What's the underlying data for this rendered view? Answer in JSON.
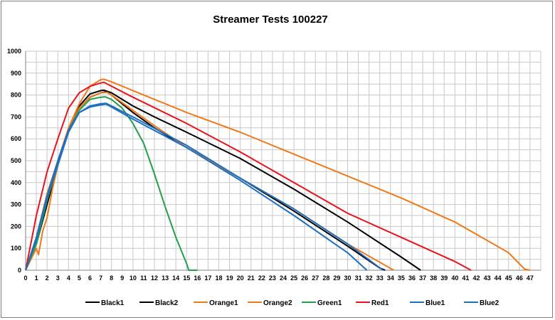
{
  "chart_data": {
    "type": "line",
    "title": "Streamer Tests 100227",
    "xlabel": "",
    "ylabel": "",
    "xlim": [
      0,
      48
    ],
    "ylim": [
      0,
      1000
    ],
    "x_ticks": [
      "0",
      "1",
      "2",
      "3",
      "4",
      "5",
      "6",
      "7",
      "8",
      "9",
      "10",
      "11",
      "12",
      "13",
      "14",
      "15",
      "16",
      "17",
      "18",
      "19",
      "20",
      "21",
      "22",
      "23",
      "24",
      "25",
      "26",
      "27",
      "28",
      "29",
      "30",
      "31",
      "32",
      "33",
      "34",
      "35",
      "36",
      "37",
      "38",
      "39",
      "40",
      "41",
      "42",
      "43",
      "44",
      "45",
      "46",
      "47"
    ],
    "y_ticks": [
      "0",
      "100",
      "200",
      "300",
      "400",
      "500",
      "600",
      "700",
      "800",
      "900",
      "1000"
    ],
    "grid": true,
    "legend_position": "bottom",
    "series": [
      {
        "name": "Black1",
        "color": "#000000",
        "x": [
          0,
          1,
          2,
          3,
          4,
          5,
          6,
          7,
          7.5,
          8,
          10,
          12,
          15,
          20,
          25,
          30,
          33,
          33.5
        ],
        "y": [
          0,
          120,
          300,
          480,
          640,
          740,
          790,
          810,
          815,
          800,
          720,
          650,
          560,
          420,
          270,
          110,
          10,
          0
        ]
      },
      {
        "name": "Black2",
        "color": "#000000",
        "x": [
          0,
          1,
          2,
          3,
          4,
          5,
          6,
          7,
          7.3,
          8,
          10,
          12,
          15,
          20,
          25,
          30,
          35,
          36.8
        ],
        "y": [
          0,
          130,
          320,
          480,
          640,
          750,
          805,
          820,
          822,
          810,
          750,
          700,
          630,
          510,
          370,
          220,
          60,
          0
        ]
      },
      {
        "name": "Orange1",
        "color": "#f07a1a",
        "x": [
          0,
          1,
          1.2,
          1.6,
          2,
          2.5,
          3,
          4,
          5,
          6,
          7,
          7.6,
          8,
          10,
          12,
          15,
          20,
          25,
          30,
          34.3
        ],
        "y": [
          0,
          100,
          70,
          180,
          240,
          370,
          480,
          640,
          740,
          790,
          810,
          812,
          800,
          730,
          660,
          560,
          420,
          280,
          120,
          0
        ]
      },
      {
        "name": "Orange2",
        "color": "#f07a1a",
        "x": [
          0,
          1,
          2,
          3,
          4,
          5,
          6,
          7,
          7.3,
          8,
          10,
          15,
          20,
          25,
          30,
          35,
          40,
          45,
          46.5,
          47
        ],
        "y": [
          0,
          150,
          350,
          500,
          650,
          760,
          840,
          870,
          872,
          860,
          820,
          720,
          630,
          530,
          430,
          330,
          220,
          80,
          5,
          0
        ]
      },
      {
        "name": "Green1",
        "color": "#21a04a",
        "x": [
          0,
          1,
          2,
          3,
          4,
          5,
          6,
          7,
          7.4,
          8,
          9,
          10,
          11,
          12,
          13,
          14,
          15,
          15.2,
          16
        ],
        "y": [
          0,
          120,
          320,
          480,
          640,
          730,
          780,
          790,
          792,
          780,
          740,
          670,
          580,
          440,
          290,
          150,
          30,
          0,
          0
        ]
      },
      {
        "name": "Red1",
        "color": "#e8131b",
        "x": [
          0,
          1,
          2,
          3,
          4,
          5,
          6,
          7,
          7.3,
          8,
          10,
          15,
          20,
          25,
          30,
          35,
          40,
          41.5
        ],
        "y": [
          0,
          250,
          450,
          600,
          740,
          810,
          840,
          855,
          858,
          840,
          790,
          670,
          540,
          400,
          260,
          150,
          40,
          0
        ]
      },
      {
        "name": "Blue1",
        "color": "#1e6fc0",
        "x": [
          0,
          1,
          2,
          3,
          4,
          5,
          6,
          7,
          7.5,
          8,
          10,
          15,
          20,
          25,
          30,
          31.8
        ],
        "y": [
          0,
          150,
          340,
          500,
          640,
          720,
          745,
          755,
          758,
          745,
          690,
          560,
          410,
          250,
          80,
          0
        ]
      },
      {
        "name": "Blue2",
        "color": "#1e6fc0",
        "x": [
          0,
          1,
          2,
          3,
          4,
          5,
          6,
          7,
          7.5,
          8,
          10,
          15,
          20,
          25,
          30,
          33.3
        ],
        "y": [
          0,
          140,
          330,
          480,
          630,
          720,
          750,
          760,
          762,
          750,
          700,
          570,
          420,
          280,
          120,
          0
        ]
      }
    ]
  }
}
